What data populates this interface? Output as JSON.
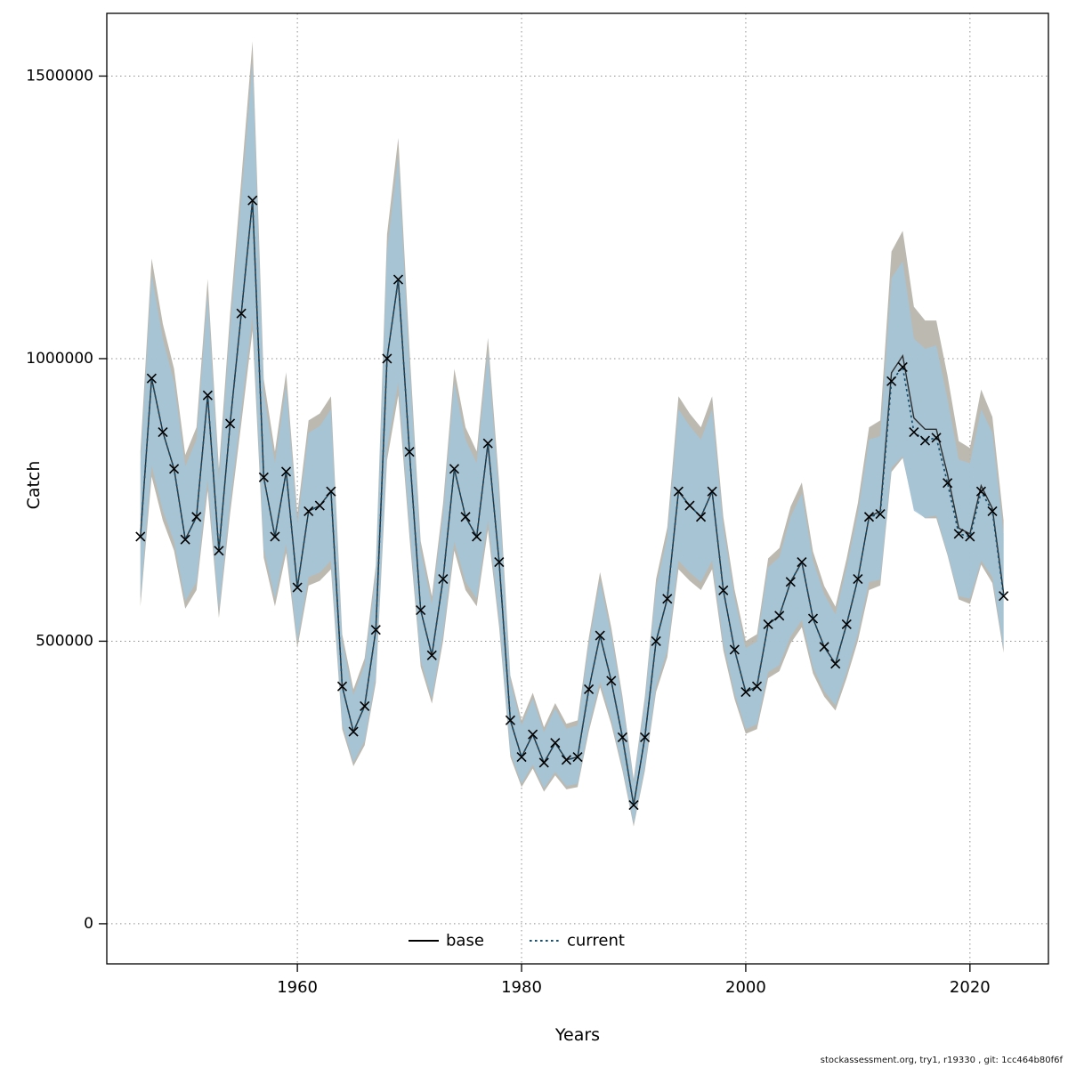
{
  "footer": {
    "credit": "stockassessment.org, try1, r19330 , git: 1cc464b80f6f"
  },
  "legend": {
    "entries": [
      {
        "label": "base",
        "style": "solid",
        "color": "#000000"
      },
      {
        "label": "current",
        "style": "dotted",
        "color": "#17506e"
      }
    ]
  },
  "chart_data": {
    "type": "line",
    "title": "",
    "xlabel": "Years",
    "ylabel": "Catch",
    "xlim": [
      1943,
      2027
    ],
    "ylim": [
      -71000,
      1611000
    ],
    "xticks": [
      1960,
      1980,
      2000,
      2020
    ],
    "yticks": [
      0,
      500000,
      1000000,
      1500000
    ],
    "grid": true,
    "legend_position": "bottom-center-inside",
    "marker": {
      "shape": "x",
      "color": "#000000"
    },
    "x": [
      1946,
      1947,
      1948,
      1949,
      1950,
      1951,
      1952,
      1953,
      1954,
      1955,
      1956,
      1957,
      1958,
      1959,
      1960,
      1961,
      1962,
      1963,
      1964,
      1965,
      1966,
      1967,
      1968,
      1969,
      1970,
      1971,
      1972,
      1973,
      1974,
      1975,
      1976,
      1977,
      1978,
      1979,
      1980,
      1981,
      1982,
      1983,
      1984,
      1985,
      1986,
      1987,
      1988,
      1989,
      1990,
      1991,
      1992,
      1993,
      1994,
      1995,
      1996,
      1997,
      1998,
      1999,
      2000,
      2001,
      2002,
      2003,
      2004,
      2005,
      2006,
      2007,
      2008,
      2009,
      2010,
      2011,
      2012,
      2013,
      2014,
      2015,
      2016,
      2017,
      2018,
      2019,
      2020,
      2021,
      2022,
      2023
    ],
    "observed": [
      685000,
      965000,
      870000,
      805000,
      680000,
      720000,
      935000,
      660000,
      885000,
      1080000,
      1280000,
      790000,
      685000,
      800000,
      595000,
      730000,
      740000,
      765000,
      420000,
      340000,
      385000,
      520000,
      1000000,
      1140000,
      835000,
      555000,
      475000,
      610000,
      805000,
      720000,
      685000,
      850000,
      640000,
      360000,
      295000,
      335000,
      285000,
      320000,
      290000,
      295000,
      415000,
      510000,
      430000,
      330000,
      210000,
      330000,
      500000,
      575000,
      765000,
      740000,
      720000,
      765000,
      590000,
      485000,
      410000,
      420000,
      530000,
      545000,
      605000,
      640000,
      540000,
      490000,
      460000,
      530000,
      610000,
      720000,
      725000,
      960000,
      985000,
      870000,
      855000,
      860000,
      780000,
      690000,
      685000,
      765000,
      730000,
      580000
    ],
    "series": [
      {
        "name": "base",
        "line_style": "solid",
        "line_color": "#2e2e2e",
        "line_width": 1.4,
        "band_color": "#b5b1a9",
        "band_opacity": 0.9,
        "band_lower_ratio": 0.82,
        "band_upper_ratio": 1.22,
        "values": [
          685000,
          965000,
          870000,
          805000,
          680000,
          720000,
          935000,
          660000,
          885000,
          1080000,
          1280000,
          790000,
          685000,
          800000,
          595000,
          730000,
          740000,
          765000,
          420000,
          340000,
          385000,
          520000,
          1000000,
          1140000,
          835000,
          555000,
          475000,
          610000,
          805000,
          720000,
          685000,
          850000,
          640000,
          360000,
          295000,
          335000,
          285000,
          320000,
          290000,
          295000,
          415000,
          510000,
          430000,
          330000,
          210000,
          330000,
          500000,
          575000,
          765000,
          740000,
          720000,
          765000,
          590000,
          485000,
          410000,
          420000,
          530000,
          545000,
          605000,
          640000,
          540000,
          490000,
          460000,
          530000,
          610000,
          720000,
          730000,
          975000,
          1005000,
          895000,
          875000,
          875000,
          795000,
          700000,
          690000,
          775000,
          735000,
          585000
        ]
      },
      {
        "name": "current",
        "line_style": "dotted",
        "line_color": "#17506e",
        "line_width": 1.7,
        "band_color": "#a3c6da",
        "band_opacity": 0.85,
        "band_lower_ratio": 0.84,
        "band_upper_ratio": 1.19,
        "values": [
          685000,
          965000,
          870000,
          805000,
          680000,
          720000,
          935000,
          660000,
          885000,
          1080000,
          1280000,
          790000,
          685000,
          800000,
          595000,
          730000,
          740000,
          765000,
          420000,
          340000,
          385000,
          520000,
          1000000,
          1140000,
          835000,
          555000,
          475000,
          610000,
          805000,
          720000,
          685000,
          850000,
          640000,
          360000,
          295000,
          335000,
          285000,
          320000,
          290000,
          295000,
          415000,
          510000,
          430000,
          330000,
          210000,
          330000,
          500000,
          575000,
          765000,
          740000,
          720000,
          765000,
          590000,
          485000,
          410000,
          420000,
          530000,
          545000,
          605000,
          640000,
          540000,
          490000,
          460000,
          530000,
          610000,
          720000,
          725000,
          960000,
          985000,
          870000,
          855000,
          860000,
          780000,
          690000,
          685000,
          765000,
          730000,
          580000
        ]
      }
    ]
  }
}
